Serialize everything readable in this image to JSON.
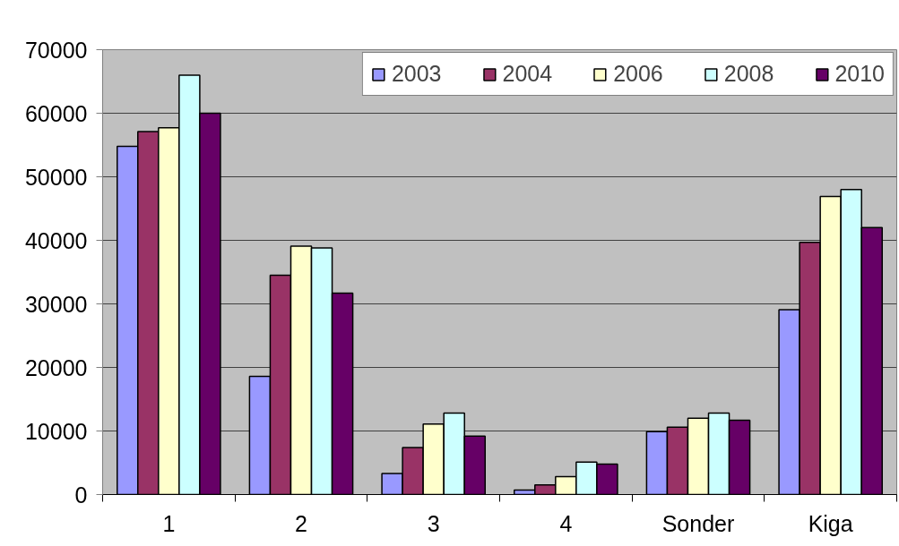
{
  "chart_data": {
    "type": "bar",
    "categories": [
      "1",
      "2",
      "3",
      "4",
      "Sonder",
      "Kiga"
    ],
    "series": [
      {
        "name": "2003",
        "color": "#9999ff",
        "values": [
          54800,
          18600,
          3300,
          700,
          9900,
          29100
        ]
      },
      {
        "name": "2004",
        "color": "#993366",
        "values": [
          57100,
          34500,
          7400,
          1500,
          10600,
          39700
        ]
      },
      {
        "name": "2006",
        "color": "#ffffcc",
        "values": [
          57700,
          39100,
          11100,
          2800,
          12000,
          46900
        ]
      },
      {
        "name": "2008",
        "color": "#ccffff",
        "values": [
          66000,
          38800,
          12800,
          5100,
          12800,
          48000
        ]
      },
      {
        "name": "2010",
        "color": "#660066",
        "values": [
          60000,
          31700,
          9200,
          4800,
          11700,
          42000
        ]
      }
    ],
    "ylim": [
      0,
      70000
    ],
    "yticks": [
      0,
      10000,
      20000,
      30000,
      40000,
      50000,
      60000,
      70000
    ],
    "grid": "y",
    "legend": "top right"
  }
}
